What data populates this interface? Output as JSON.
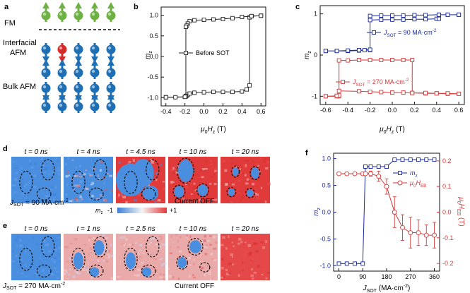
{
  "panel_a": {
    "letter": "a",
    "labels": [
      {
        "lines": [
          "FM"
        ]
      },
      {
        "lines": [
          "Interfacial",
          "AFM"
        ]
      },
      {
        "lines": [
          "Bulk AFM"
        ]
      }
    ],
    "colors": {
      "fm": "#6fb244",
      "interfacial": "#d42a2a",
      "bulk": "#1f6fb4"
    }
  },
  "panel_d": {
    "letter": "d",
    "times": [
      "t = 0 ns",
      "t = 4 ns",
      "t = 4.5 ns",
      "t = 10 ns",
      "t = 20 ns"
    ],
    "jsot": "J",
    "jsot_sub": "SOT",
    "jsot_value": " = 90 MA·cm",
    "jsot_sup": "-2",
    "current_off": "Current OFF"
  },
  "colorbar": {
    "label": "m",
    "label_sub": "z",
    "min": "-1",
    "max": "+1"
  },
  "panel_e": {
    "letter": "e",
    "times": [
      "t = 0 ns",
      "t = 1 ns",
      "t = 2.5 ns",
      "t = 10 ns",
      "t = 20 ns"
    ],
    "jsot": "J",
    "jsot_sub": "SOT",
    "jsot_value": " = 270 MA·cm",
    "jsot_sup": "-2",
    "current_off": "Current OFF"
  },
  "chart_data": [
    {
      "panel": "b",
      "type": "line",
      "xlabel_parts": [
        "μ",
        "0",
        "H",
        "z",
        " (T)"
      ],
      "ylabel_parts": [
        "m",
        "z"
      ],
      "xlim": [
        -0.45,
        0.65
      ],
      "ylim": [
        -1.2,
        1.2
      ],
      "xticks": [
        "-0.4",
        "-0.2",
        "0.0",
        "0.2",
        "0.4",
        "0.6"
      ],
      "yticks": [
        "-1.0",
        "-0.5",
        "0.0",
        "0.5",
        "1.0"
      ],
      "legend": "Before SOT",
      "color": "#222222",
      "series": [
        {
          "x": [
            -0.4,
            -0.2,
            -0.19,
            -0.18,
            -0.17,
            -0.15,
            -0.1,
            0.0,
            0.1,
            0.2,
            0.3,
            0.4,
            0.45,
            0.48,
            0.48,
            0.5,
            0.6
          ],
          "y": [
            -0.99,
            -0.98,
            -0.97,
            -0.95,
            -0.93,
            -0.9,
            -0.88,
            -0.87,
            -0.86,
            -0.86,
            -0.86,
            -0.85,
            -0.8,
            -0.7,
            0.95,
            0.98,
            0.99
          ]
        },
        {
          "x": [
            0.6,
            0.5,
            0.4,
            0.3,
            0.2,
            0.1,
            0.0,
            -0.1,
            -0.15,
            -0.17,
            -0.18,
            -0.19,
            -0.19,
            -0.2,
            -0.3,
            -0.4
          ],
          "y": [
            0.99,
            0.98,
            0.96,
            0.93,
            0.91,
            0.9,
            0.89,
            0.88,
            0.86,
            0.8,
            0.75,
            0.72,
            -0.96,
            -0.98,
            -0.99,
            -0.99
          ]
        }
      ]
    },
    {
      "panel": "c",
      "type": "line",
      "xlabel_parts": [
        "μ",
        "0",
        "H",
        "z",
        " (T)"
      ],
      "ylabel_parts": [
        "m",
        "z"
      ],
      "xlim": [
        -0.65,
        0.65
      ],
      "ylim": [
        -1.2,
        1.2
      ],
      "xticks": [
        "-0.6",
        "-0.4",
        "-0.2",
        "0.0",
        "0.2",
        "0.4",
        "0.6"
      ],
      "yticks": [
        "-1",
        "0",
        "1"
      ],
      "series": [
        {
          "name": "J_SOT = 90 MA·cm^-2",
          "name_parts": [
            "J",
            "SOT",
            " = 90 MA·cm",
            "-2"
          ],
          "color": "#1a2a9c",
          "x": [
            -0.6,
            -0.5,
            -0.4,
            -0.3,
            -0.25,
            -0.2,
            -0.2,
            -0.1,
            0.0,
            0.1,
            0.2,
            0.3,
            0.4,
            0.42,
            0.42,
            0.5,
            0.6,
            0.6,
            0.5,
            0.42,
            0.3,
            0.2,
            0.1,
            0.0,
            -0.1,
            -0.2,
            -0.2,
            -0.3,
            -0.4,
            -0.5,
            -0.6
          ],
          "y": [
            0.1,
            0.1,
            0.1,
            0.11,
            0.12,
            0.12,
            0.85,
            0.86,
            0.86,
            0.86,
            0.87,
            0.87,
            0.88,
            0.88,
            0.98,
            0.98,
            0.98,
            0.98,
            0.98,
            0.98,
            0.97,
            0.97,
            0.96,
            0.96,
            0.96,
            0.95,
            0.13,
            0.12,
            0.11,
            0.1,
            0.1
          ]
        },
        {
          "name": "J_SOT = 270 MA·cm^-2",
          "name_parts": [
            "J",
            "SOT",
            " = 270 MA·cm",
            "-2"
          ],
          "color": "#d43a3a",
          "x": [
            -0.6,
            -0.5,
            -0.48,
            -0.48,
            -0.4,
            -0.3,
            -0.2,
            -0.1,
            0.0,
            0.1,
            0.18,
            0.18,
            0.3,
            0.4,
            0.5,
            0.6,
            0.6,
            0.5,
            0.4,
            0.3,
            0.18,
            0.1,
            0.0,
            -0.1,
            -0.2,
            -0.3,
            -0.48,
            -0.48,
            -0.5,
            -0.6
          ],
          "y": [
            -1.0,
            -1.0,
            -1.0,
            -0.13,
            -0.13,
            -0.12,
            -0.12,
            -0.12,
            -0.12,
            -0.12,
            -0.12,
            -0.92,
            -0.93,
            -0.93,
            -0.94,
            -0.94,
            -0.94,
            -0.93,
            -0.93,
            -0.92,
            -0.92,
            -0.91,
            -0.91,
            -0.9,
            -0.89,
            -0.88,
            -0.87,
            -0.98,
            -0.99,
            -1.0
          ]
        }
      ]
    },
    {
      "panel": "f",
      "type": "line",
      "xlabel_parts": [
        "J",
        "SOT",
        " (MA·cm",
        "-2",
        ")"
      ],
      "ylabel_parts": [
        "m",
        "z"
      ],
      "ylabel_right_parts": [
        "μ",
        "0",
        "H",
        "EB",
        " (T)"
      ],
      "xlim": [
        -20,
        380
      ],
      "ylim": [
        -1.1,
        1.1
      ],
      "ylim_right": [
        -0.23,
        0.23
      ],
      "xticks": [
        "0",
        "90",
        "180",
        "270",
        "360"
      ],
      "yticks": [
        "-1.0",
        "-0.5",
        "0.0",
        "0.5",
        "1.0"
      ],
      "yticks_right": [
        "-0.2",
        "-0.1",
        "0.0",
        "0.1",
        "0.2"
      ],
      "x": [
        0,
        30,
        60,
        90,
        100,
        120,
        150,
        180,
        210,
        240,
        270,
        300,
        330,
        360
      ],
      "series": [
        {
          "name": "m_z",
          "name_parts": [
            "m",
            "z"
          ],
          "axis": "left",
          "color": "#1a2a9c",
          "values": [
            -0.96,
            -0.96,
            -0.96,
            -0.96,
            0.85,
            0.85,
            0.85,
            0.85,
            0.98,
            0.98,
            0.98,
            0.98,
            0.98,
            0.98
          ]
        },
        {
          "name": "μ0H_EB",
          "name_parts": [
            "μ",
            "0",
            "H",
            "EB"
          ],
          "axis": "right",
          "color": "#d43a3a",
          "values": [
            0.15,
            0.15,
            0.15,
            0.15,
            0.15,
            0.15,
            0.14,
            0.1,
            0.0,
            -0.06,
            -0.08,
            -0.08,
            -0.09,
            -0.09
          ],
          "errors": [
            0.005,
            0.005,
            0.005,
            0.005,
            0.005,
            0.01,
            0.02,
            0.03,
            0.06,
            0.05,
            0.06,
            0.05,
            0.04,
            0.05
          ]
        }
      ]
    }
  ]
}
